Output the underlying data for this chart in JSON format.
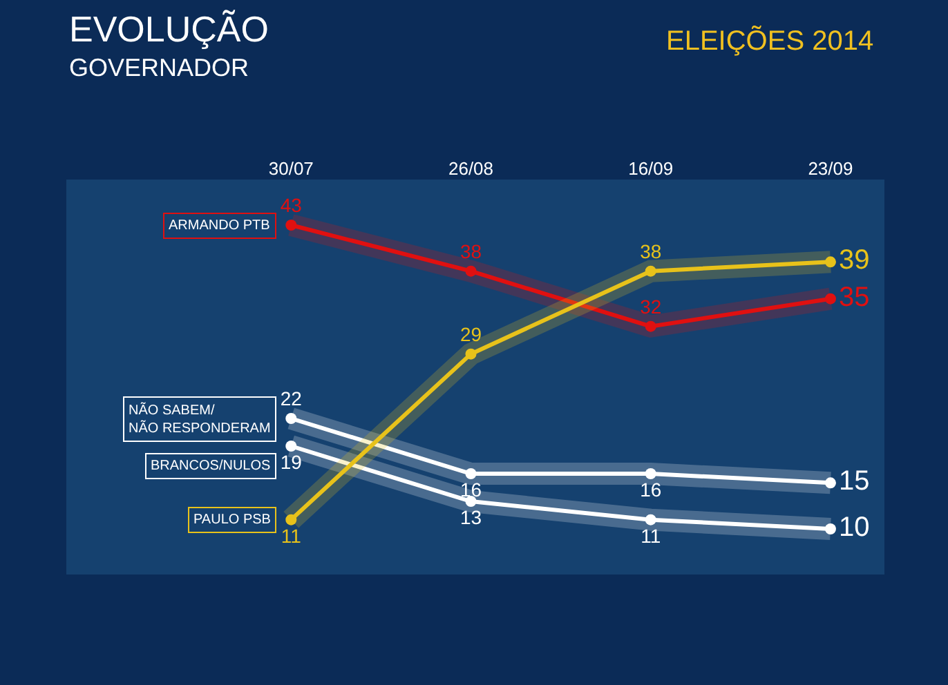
{
  "chart_data": {
    "type": "line",
    "title": "EVOLUÇÃO",
    "subtitle": "GOVERNADOR",
    "annotations": [
      "ELEIÇÕES 2014"
    ],
    "categories": [
      "30/07",
      "26/08",
      "16/09",
      "23/09"
    ],
    "series": [
      {
        "name": "ARMANDO PTB",
        "color": "#e01010",
        "values": [
          43,
          38,
          32,
          35
        ]
      },
      {
        "name": "NÃO SABEM/\nNÃO RESPONDERAM",
        "color": "#ffffff",
        "values": [
          22,
          16,
          16,
          15
        ]
      },
      {
        "name": "BRANCOS/NULOS",
        "color": "#ffffff",
        "values": [
          19,
          13,
          11,
          10
        ]
      },
      {
        "name": "PAULO PSB",
        "color": "#e8c21a",
        "values": [
          11,
          29,
          38,
          39
        ]
      }
    ],
    "data_labels": true,
    "marker": "circle",
    "line_style": "solid",
    "legend": false,
    "grid": false
  }
}
